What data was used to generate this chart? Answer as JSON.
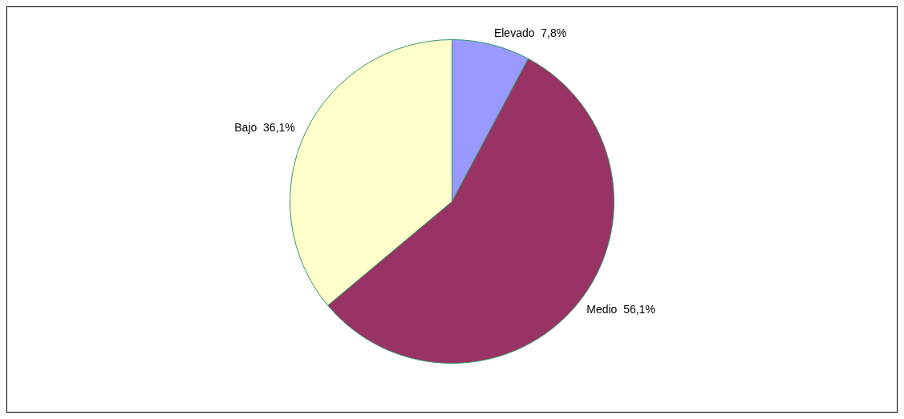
{
  "chart_data": {
    "type": "pie",
    "categories": [
      "Elevado",
      "Medio",
      "Bajo"
    ],
    "values": [
      7.8,
      56.1,
      36.1
    ],
    "colors": [
      "#9999ff",
      "#993366",
      "#ffffcc"
    ],
    "value_labels": [
      "7,8%",
      "56,1%",
      "36,1%"
    ],
    "legend": false
  }
}
